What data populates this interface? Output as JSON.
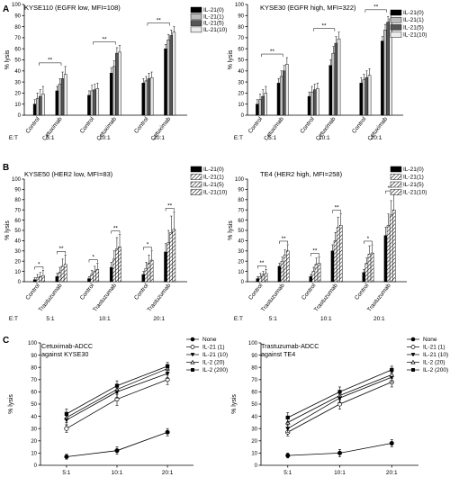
{
  "chart_data": [
    {
      "id": "A1",
      "panel_label": "A",
      "type": "bar",
      "title": "KYSE110 (EGFR low, MFI=108)",
      "ylabel": "% lysis",
      "ylim": [
        0,
        100
      ],
      "yticks": [
        0,
        10,
        20,
        30,
        40,
        50,
        60,
        70,
        80,
        90,
        100
      ],
      "et_label": "E:T",
      "et_ratios": [
        "5:1",
        "10:1",
        "20:1"
      ],
      "categories": [
        "Control",
        "Cetuximab"
      ],
      "series": [
        {
          "name": "IL-21(0)",
          "color": "#000000",
          "pattern": "solid"
        },
        {
          "name": "IL-21(1)",
          "color": "#bdbdbd",
          "pattern": "solid"
        },
        {
          "name": "IL-21(5)",
          "color": "#555555",
          "pattern": "solid"
        },
        {
          "name": "IL-21(10)",
          "color": "#ececec",
          "pattern": "solid"
        }
      ],
      "groups": [
        {
          "values": [
            [
              10,
              15,
              17,
              19
            ],
            [
              22,
              28,
              33,
              37
            ]
          ],
          "errors": [
            [
              4,
              5,
              6,
              7
            ],
            [
              4,
              5,
              6,
              7
            ]
          ]
        },
        {
          "values": [
            [
              18,
              22,
              23,
              24
            ],
            [
              38,
              44,
              56,
              57
            ]
          ],
          "errors": [
            [
              4,
              5,
              5,
              5
            ],
            [
              5,
              5,
              5,
              6
            ]
          ]
        },
        {
          "values": [
            [
              29,
              31,
              33,
              34
            ],
            [
              60,
              68,
              72,
              75
            ]
          ],
          "errors": [
            [
              4,
              4,
              5,
              5
            ],
            [
              4,
              5,
              5,
              5
            ]
          ]
        }
      ],
      "significance": [
        "**",
        "**",
        "**"
      ]
    },
    {
      "id": "A2",
      "type": "bar",
      "title": "KYSE30 (EGFR high, MFI=322)",
      "ylabel": "% lysis",
      "ylim": [
        0,
        100
      ],
      "yticks": [
        0,
        10,
        20,
        30,
        40,
        50,
        60,
        70,
        80,
        90,
        100
      ],
      "et_label": "E:T",
      "et_ratios": [
        "5:1",
        "10:1",
        "20:1"
      ],
      "categories": [
        "Control",
        "Cetuximab"
      ],
      "series": [
        {
          "name": "IL-21(0)",
          "color": "#000000",
          "pattern": "solid"
        },
        {
          "name": "IL-21(1)",
          "color": "#bdbdbd",
          "pattern": "solid"
        },
        {
          "name": "IL-21(5)",
          "color": "#555555",
          "pattern": "solid"
        },
        {
          "name": "IL-21(10)",
          "color": "#ececec",
          "pattern": "solid"
        }
      ],
      "groups": [
        {
          "values": [
            [
              10,
              14,
              17,
              20
            ],
            [
              29,
              35,
              40,
              46
            ]
          ],
          "errors": [
            [
              4,
              5,
              6,
              6
            ],
            [
              4,
              5,
              5,
              6
            ]
          ]
        },
        {
          "values": [
            [
              17,
              21,
              23,
              24
            ],
            [
              45,
              56,
              65,
              69
            ]
          ],
          "errors": [
            [
              4,
              5,
              5,
              5
            ],
            [
              5,
              6,
              6,
              6
            ]
          ]
        },
        {
          "values": [
            [
              29,
              32,
              34,
              36
            ],
            [
              67,
              77,
              84,
              87
            ]
          ],
          "errors": [
            [
              5,
              5,
              6,
              6
            ],
            [
              4,
              5,
              5,
              5
            ]
          ]
        }
      ],
      "significance": [
        "**",
        "**",
        "**"
      ]
    },
    {
      "id": "B1",
      "panel_label": "B",
      "type": "bar",
      "title": "KYSE50 (HER2 low, MFI=83)",
      "ylabel": "% lysis",
      "ylim": [
        0,
        100
      ],
      "yticks": [
        0,
        10,
        20,
        30,
        40,
        50,
        60,
        70,
        80,
        90,
        100
      ],
      "et_label": "E:T",
      "et_ratios": [
        "5:1",
        "10:1",
        "20:1"
      ],
      "categories": [
        "Control",
        "Trastuzumab"
      ],
      "series": [
        {
          "name": "IL-21(0)",
          "color": "#000000",
          "pattern": "solid"
        },
        {
          "name": "IL-21(1)",
          "color": "#ffffff",
          "pattern": "hatch"
        },
        {
          "name": "IL-21(5)",
          "color": "#555555",
          "pattern": "hatch"
        },
        {
          "name": "IL-21(10)",
          "color": "#bbbbbb",
          "pattern": "hatch"
        }
      ],
      "groups": [
        {
          "values": [
            [
              2,
              4,
              5,
              6
            ],
            [
              5,
              9,
              15,
              17
            ]
          ],
          "errors": [
            [
              2,
              3,
              4,
              5
            ],
            [
              3,
              5,
              7,
              9
            ]
          ]
        },
        {
          "values": [
            [
              3,
              7,
              10,
              12
            ],
            [
              14,
              22,
              32,
              34
            ]
          ],
          "errors": [
            [
              2,
              4,
              5,
              6
            ],
            [
              5,
              8,
              11,
              12
            ]
          ]
        },
        {
          "values": [
            [
              7,
              13,
              18,
              21
            ],
            [
              29,
              38,
              48,
              51
            ]
          ],
          "errors": [
            [
              3,
              6,
              8,
              9
            ],
            [
              8,
              12,
              16,
              17
            ]
          ]
        }
      ],
      "significance": [
        "*",
        "**",
        "*",
        "**",
        "*",
        "**"
      ]
    },
    {
      "id": "B2",
      "type": "bar",
      "title": "TE4 (HER2 high, MFI=258)",
      "ylabel": "% lysis",
      "ylim": [
        0,
        100
      ],
      "yticks": [
        0,
        10,
        20,
        30,
        40,
        50,
        60,
        70,
        80,
        90,
        100
      ],
      "et_label": "E:T",
      "et_ratios": [
        "5:1",
        "10:1",
        "20:1"
      ],
      "categories": [
        "Control",
        "Trastuzumab"
      ],
      "series": [
        {
          "name": "IL-21(0)",
          "color": "#000000",
          "pattern": "solid"
        },
        {
          "name": "IL-21(1)",
          "color": "#ffffff",
          "pattern": "hatch"
        },
        {
          "name": "IL-21(5)",
          "color": "#555555",
          "pattern": "hatch"
        },
        {
          "name": "IL-21(10)",
          "color": "#bbbbbb",
          "pattern": "hatch"
        }
      ],
      "groups": [
        {
          "values": [
            [
              3,
              5,
              7,
              8
            ],
            [
              15,
              20,
              26,
              30
            ]
          ],
          "errors": [
            [
              2,
              3,
              3,
              4
            ],
            [
              3,
              4,
              5,
              6
            ]
          ]
        },
        {
          "values": [
            [
              5,
              10,
              17,
              18
            ],
            [
              30,
              40,
              53,
              55
            ]
          ],
          "errors": [
            [
              2,
              4,
              6,
              6
            ],
            [
              6,
              8,
              10,
              11
            ]
          ]
        },
        {
          "values": [
            [
              9,
              18,
              27,
              28
            ],
            [
              45,
              55,
              65,
              70
            ]
          ],
          "errors": [
            [
              3,
              5,
              8,
              8
            ],
            [
              8,
              11,
              14,
              15
            ]
          ]
        }
      ],
      "significance": [
        "**",
        "**",
        "**",
        "**",
        "*",
        "**"
      ]
    },
    {
      "id": "C1",
      "panel_label": "C",
      "type": "line",
      "title": "Cetuximab-ADCC",
      "subtitle": "against KYSE30",
      "ylabel": "% lysis",
      "ylim": [
        0,
        100
      ],
      "yticks": [
        0,
        10,
        20,
        30,
        40,
        50,
        60,
        70,
        80,
        90,
        100
      ],
      "categories": [
        "5:1",
        "10:1",
        "20:1"
      ],
      "series": [
        {
          "name": "None",
          "marker": "circle-filled",
          "values": [
            7,
            12,
            27
          ],
          "errors": [
            2,
            3,
            3
          ]
        },
        {
          "name": "IL-21 (1)",
          "marker": "circle-open",
          "values": [
            30,
            54,
            70
          ],
          "errors": [
            3,
            5,
            4
          ]
        },
        {
          "name": "IL-21 (10)",
          "marker": "triangle-down-filled",
          "values": [
            37,
            60,
            75
          ],
          "errors": [
            4,
            5,
            4
          ]
        },
        {
          "name": "IL-2 (20)",
          "marker": "triangle-up-open",
          "values": [
            39,
            62,
            79
          ],
          "errors": [
            4,
            4,
            3
          ]
        },
        {
          "name": "IL-2 (200)",
          "marker": "square-filled",
          "values": [
            42,
            65,
            81
          ],
          "errors": [
            4,
            4,
            3
          ]
        }
      ]
    },
    {
      "id": "C2",
      "type": "line",
      "title": "Trastuzumab-ADCC",
      "subtitle": "against TE4",
      "ylabel": "% lysis",
      "ylim": [
        0,
        100
      ],
      "yticks": [
        0,
        10,
        20,
        30,
        40,
        50,
        60,
        70,
        80,
        90,
        100
      ],
      "categories": [
        "5:1",
        "10:1",
        "20:1"
      ],
      "series": [
        {
          "name": "None",
          "marker": "circle-filled",
          "values": [
            8,
            10,
            18
          ],
          "errors": [
            2,
            3,
            3
          ]
        },
        {
          "name": "IL-21 (1)",
          "marker": "circle-open",
          "values": [
            27,
            50,
            68
          ],
          "errors": [
            3,
            4,
            4
          ]
        },
        {
          "name": "IL-21 (10)",
          "marker": "triangle-down-filled",
          "values": [
            30,
            55,
            72
          ],
          "errors": [
            3,
            4,
            4
          ]
        },
        {
          "name": "IL-2 (20)",
          "marker": "triangle-up-open",
          "values": [
            35,
            57,
            74
          ],
          "errors": [
            4,
            4,
            3
          ]
        },
        {
          "name": "IL-2 (200)",
          "marker": "square-filled",
          "values": [
            39,
            60,
            78
          ],
          "errors": [
            4,
            4,
            3
          ]
        }
      ]
    }
  ]
}
